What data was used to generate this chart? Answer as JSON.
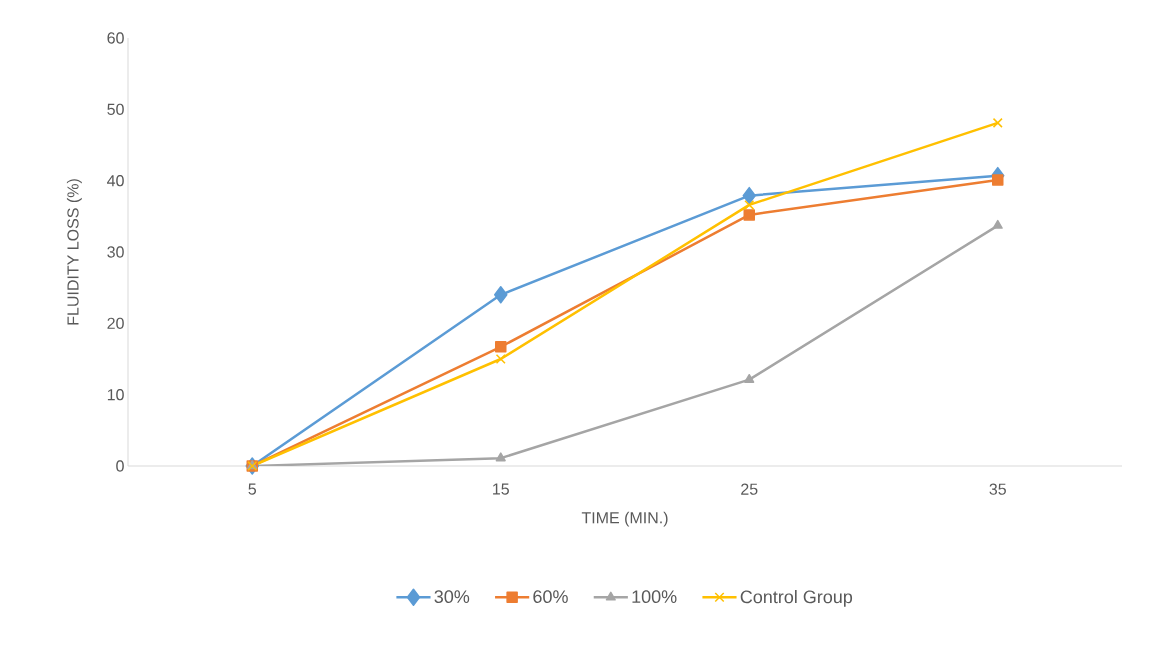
{
  "chart_data": {
    "type": "line",
    "xlabel": "TIME (MIN.)",
    "ylabel": "FLUIDITY LOSS (%)",
    "categories": [
      "5",
      "15",
      "25",
      "35"
    ],
    "ylim": [
      0,
      60
    ],
    "yticks": [
      0,
      10,
      20,
      30,
      40,
      50,
      60
    ],
    "grid": false,
    "legend": "bottom",
    "line_style": "solid",
    "series": [
      {
        "name": "30%",
        "color": "#5b9bd5",
        "marker": "diamond",
        "values": [
          0,
          24.0,
          37.9,
          40.7
        ]
      },
      {
        "name": "60%",
        "color": "#ed7d31",
        "marker": "square",
        "values": [
          0,
          16.7,
          35.2,
          40.1
        ]
      },
      {
        "name": "100%",
        "color": "#a5a5a5",
        "marker": "triangle",
        "values": [
          0,
          1.1,
          12.1,
          33.7
        ]
      },
      {
        "name": "Control Group",
        "color": "#ffc000",
        "marker": "cross",
        "values": [
          0,
          15.0,
          36.6,
          48.1
        ]
      }
    ]
  }
}
